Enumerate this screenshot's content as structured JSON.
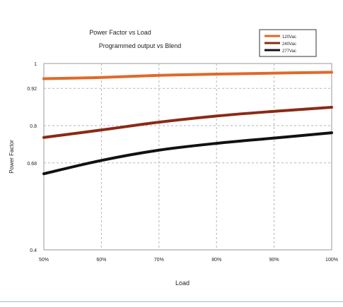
{
  "chart_data": {
    "type": "line",
    "title": "Power Factor vs Load",
    "subtitle": "Programmed output vs Blend",
    "xlabel": "Load",
    "ylabel": "Power Factor",
    "categories": [
      "50%",
      "60%",
      "70%",
      "80%",
      "90%",
      "100%"
    ],
    "x": [
      50,
      60,
      70,
      80,
      90,
      100
    ],
    "xlim": [
      50,
      100
    ],
    "ylim": [
      0.4,
      1
    ],
    "yticks": [
      1,
      0.92,
      0.8,
      0.68,
      0.4
    ],
    "ytick_labels": [
      "1",
      "0.92",
      "0.8",
      "0.68",
      "0.4"
    ],
    "grid": true,
    "legend_position": "top-right",
    "series": [
      {
        "name": "120Vac",
        "color": "#e0692a",
        "values": [
          0.951,
          0.955,
          0.962,
          0.966,
          0.969,
          0.972
        ]
      },
      {
        "name": "240Vac",
        "color": "#8a2a16",
        "values": [
          0.762,
          0.786,
          0.811,
          0.831,
          0.846,
          0.859
        ]
      },
      {
        "name": "277Vac",
        "color": "#111111",
        "values": [
          0.645,
          0.688,
          0.721,
          0.743,
          0.76,
          0.777
        ]
      }
    ]
  }
}
